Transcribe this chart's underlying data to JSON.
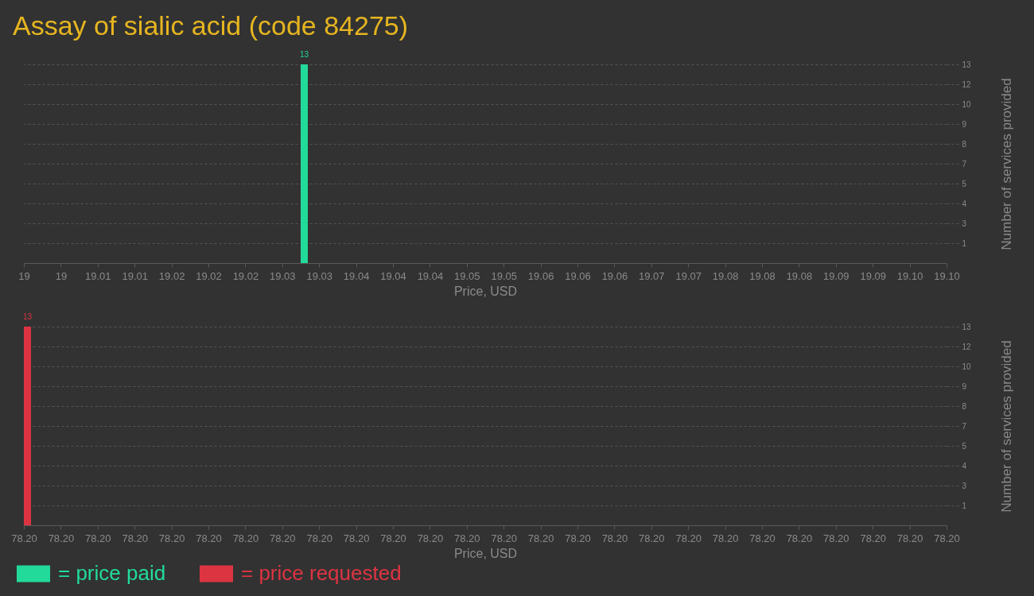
{
  "chart_data": [
    {
      "type": "bar",
      "title": "Assay of sialic acid (code 84275)",
      "xlabel": "Price, USD",
      "ylabel": "Number of services provided",
      "x": [
        19.03
      ],
      "series": [
        {
          "name": "= price paid",
          "color": "#22db9a",
          "values": [
            13
          ]
        }
      ],
      "xlim": [
        19,
        19.1
      ],
      "xticks": [
        19,
        {
          "value": 19.004,
          "label": "19"
        },
        {
          "value": 19.008,
          "label": "19.01"
        },
        {
          "value": 19.012,
          "label": "19.01"
        },
        {
          "value": 19.016,
          "label": "19.02"
        },
        19.02,
        {
          "value": 19.024,
          "label": "19.02"
        },
        {
          "value": 19.028,
          "label": "19.03"
        },
        {
          "value": 19.032,
          "label": "19.03"
        },
        {
          "value": 19.036,
          "label": "19.04"
        },
        19.04,
        {
          "value": 19.044,
          "label": "19.04"
        },
        {
          "value": 19.048,
          "label": "19.05"
        },
        {
          "value": 19.052,
          "label": "19.05"
        },
        {
          "value": 19.056,
          "label": "19.06"
        },
        19.06,
        {
          "value": 19.064,
          "label": "19.06"
        },
        {
          "value": 19.068,
          "label": "19.07"
        },
        {
          "value": 19.072,
          "label": "19.07"
        },
        {
          "value": 19.076,
          "label": "19.08"
        },
        19.08,
        {
          "value": 19.084,
          "label": "19.08"
        },
        {
          "value": 19.088,
          "label": "19.09"
        },
        {
          "value": 19.092,
          "label": "19.09"
        },
        {
          "value": 19.096,
          "label": "19.10"
        },
        {
          "value": 19.1,
          "label": "19.10"
        }
      ],
      "ylim": [
        0,
        13
      ],
      "yticks": [
        {
          "value": 1.3,
          "label": "1"
        },
        {
          "value": 2.6,
          "label": "3"
        },
        {
          "value": 3.9,
          "label": "4"
        },
        {
          "value": 5.2,
          "label": "5"
        },
        {
          "value": 6.5,
          "label": "7"
        },
        {
          "value": 7.8,
          "label": "8"
        },
        {
          "value": 9.1,
          "label": "9"
        },
        {
          "value": 10.4,
          "label": "10"
        },
        {
          "value": 11.7,
          "label": "12"
        },
        13
      ],
      "grid": "y",
      "legend": "bottom left",
      "data_labels": true
    },
    {
      "type": "bar",
      "xlabel": "Price, USD",
      "ylabel": "Number of services provided",
      "x": [
        78.2
      ],
      "series": [
        {
          "name": "= price requested",
          "color": "#dd3442",
          "values": [
            13
          ]
        }
      ],
      "xlim": [
        78.2,
        78.2025
      ],
      "xticks": [
        {
          "value": 78.2,
          "label": "78.20"
        },
        {
          "value": 78.2001,
          "label": "78.20"
        },
        {
          "value": 78.2002,
          "label": "78.20"
        },
        {
          "value": 78.2003,
          "label": "78.20"
        },
        {
          "value": 78.2004,
          "label": "78.20"
        },
        {
          "value": 78.2005,
          "label": "78.20"
        },
        {
          "value": 78.2006,
          "label": "78.20"
        },
        {
          "value": 78.2007,
          "label": "78.20"
        },
        {
          "value": 78.2008,
          "label": "78.20"
        },
        {
          "value": 78.2009,
          "label": "78.20"
        },
        {
          "value": 78.201,
          "label": "78.20"
        },
        {
          "value": 78.2011,
          "label": "78.20"
        },
        {
          "value": 78.2012,
          "label": "78.20"
        },
        {
          "value": 78.2013,
          "label": "78.20"
        },
        {
          "value": 78.2014,
          "label": "78.20"
        },
        {
          "value": 78.2015,
          "label": "78.20"
        },
        {
          "value": 78.2016,
          "label": "78.20"
        },
        {
          "value": 78.2017,
          "label": "78.20"
        },
        {
          "value": 78.2018,
          "label": "78.20"
        },
        {
          "value": 78.2019,
          "label": "78.20"
        },
        {
          "value": 78.202,
          "label": "78.20"
        },
        {
          "value": 78.2021,
          "label": "78.20"
        },
        {
          "value": 78.2022,
          "label": "78.20"
        },
        {
          "value": 78.2023,
          "label": "78.20"
        },
        {
          "value": 78.2024,
          "label": "78.20"
        },
        {
          "value": 78.2025,
          "label": "78.20"
        }
      ],
      "ylim": [
        0,
        13
      ],
      "yticks": [
        {
          "value": 1.3,
          "label": "1"
        },
        {
          "value": 2.6,
          "label": "3"
        },
        {
          "value": 3.9,
          "label": "4"
        },
        {
          "value": 5.2,
          "label": "5"
        },
        {
          "value": 6.5,
          "label": "7"
        },
        {
          "value": 7.8,
          "label": "8"
        },
        {
          "value": 9.1,
          "label": "9"
        },
        {
          "value": 10.4,
          "label": "10"
        },
        {
          "value": 11.7,
          "label": "12"
        },
        13
      ],
      "grid": "y",
      "legend": "bottom left",
      "data_labels": true
    }
  ]
}
